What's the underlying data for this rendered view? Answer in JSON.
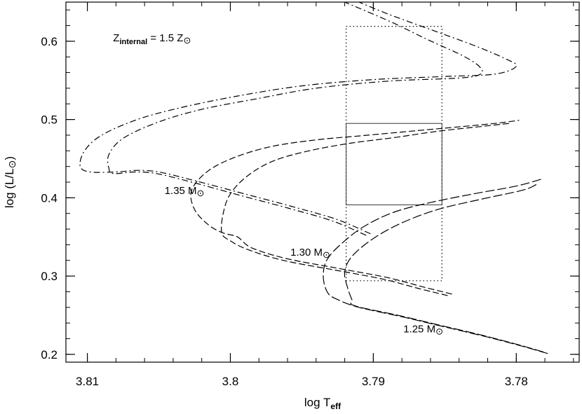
{
  "chart_data": {
    "type": "line",
    "title": "",
    "xlabel": {
      "text": "log  T",
      "subscript": "eff"
    },
    "ylabel": {
      "prefix": "log  (L/L",
      "symbol": "⊙",
      "suffix": ")"
    },
    "xlim": [
      3.8115,
      3.7756
    ],
    "ylim": [
      0.19,
      0.65
    ],
    "x_ticks": [
      3.81,
      3.8,
      3.79,
      3.78
    ],
    "x_tick_labels": [
      "3.81",
      "3.8",
      "3.79",
      "3.78"
    ],
    "y_ticks": [
      0.2,
      0.3,
      0.4,
      0.5,
      0.6
    ],
    "y_tick_labels": [
      "0.2",
      "0.3",
      "0.4",
      "0.5",
      "0.6"
    ],
    "x_minor_step": 0.002,
    "y_minor_step": 0.02,
    "annotations": [
      {
        "key": "zinternal",
        "main": "Z",
        "sub": "internal",
        "rest": "  =  1.5  Z",
        "symbol": "⊙",
        "x": 3.8082,
        "y": 0.6
      },
      {
        "key": "m135",
        "main": "1.35  M",
        "symbol": "⊙",
        "x": 3.8046,
        "y": 0.405
      },
      {
        "key": "m130",
        "main": "1.30  M",
        "symbol": "⊙",
        "x": 3.7958,
        "y": 0.326
      },
      {
        "key": "m125",
        "main": "1.25  M",
        "symbol": "⊙",
        "x": 3.7879,
        "y": 0.228
      }
    ],
    "boxes": [
      {
        "name": "dotted-box",
        "x": [
          3.7919,
          3.7852
        ],
        "y": [
          0.294,
          0.619
        ],
        "style": "dotted"
      },
      {
        "name": "solid-box",
        "x": [
          3.7919,
          3.7852
        ],
        "y": [
          0.391,
          0.495
        ],
        "style": "solid"
      }
    ],
    "series": [
      {
        "mass": "1.35",
        "style": "dashdot",
        "points": [
          [
            3.7902,
            0.354
          ],
          [
            3.7925,
            0.372
          ],
          [
            3.7955,
            0.388
          ],
          [
            3.799,
            0.405
          ],
          [
            3.8025,
            0.422
          ],
          [
            3.805,
            0.433
          ],
          [
            3.8065,
            0.435
          ],
          [
            3.808,
            0.433
          ],
          [
            3.8098,
            0.433
          ],
          [
            3.8105,
            0.44
          ],
          [
            3.8102,
            0.46
          ],
          [
            3.809,
            0.48
          ],
          [
            3.8065,
            0.5
          ],
          [
            3.8035,
            0.515
          ],
          [
            3.7995,
            0.53
          ],
          [
            3.795,
            0.543
          ],
          [
            3.79,
            0.551
          ],
          [
            3.785,
            0.555
          ],
          [
            3.7815,
            0.558
          ],
          [
            3.78,
            0.568
          ],
          [
            3.7808,
            0.578
          ],
          [
            3.783,
            0.595
          ],
          [
            3.786,
            0.615
          ],
          [
            3.789,
            0.635
          ],
          [
            3.791,
            0.65
          ]
        ]
      },
      {
        "mass": "1.35",
        "style": "dashdot",
        "points": [
          [
            3.7905,
            0.352
          ],
          [
            3.7928,
            0.37
          ],
          [
            3.7958,
            0.386
          ],
          [
            3.7993,
            0.403
          ],
          [
            3.8027,
            0.42
          ],
          [
            3.8052,
            0.431
          ],
          [
            3.8067,
            0.433
          ],
          [
            3.8082,
            0.431
          ],
          [
            3.8085,
            0.438
          ],
          [
            3.8085,
            0.455
          ],
          [
            3.8075,
            0.476
          ],
          [
            3.805,
            0.497
          ],
          [
            3.802,
            0.513
          ],
          [
            3.798,
            0.527
          ],
          [
            3.794,
            0.54
          ],
          [
            3.789,
            0.549
          ],
          [
            3.784,
            0.553
          ],
          [
            3.7825,
            0.558
          ],
          [
            3.7826,
            0.568
          ],
          [
            3.7838,
            0.582
          ],
          [
            3.7862,
            0.602
          ],
          [
            3.7888,
            0.625
          ],
          [
            3.792,
            0.65
          ]
        ]
      },
      {
        "mass": "1.30",
        "style": "dashed",
        "points": [
          [
            3.7845,
            0.277
          ],
          [
            3.7865,
            0.286
          ],
          [
            3.789,
            0.298
          ],
          [
            3.7925,
            0.31
          ],
          [
            3.796,
            0.322
          ],
          [
            3.7985,
            0.336
          ],
          [
            3.7995,
            0.35
          ],
          [
            3.8005,
            0.355
          ],
          [
            3.8015,
            0.365
          ],
          [
            3.8025,
            0.385
          ],
          [
            3.8027,
            0.41
          ],
          [
            3.8015,
            0.435
          ],
          [
            3.7995,
            0.453
          ],
          [
            3.797,
            0.466
          ],
          [
            3.794,
            0.474
          ],
          [
            3.791,
            0.479
          ],
          [
            3.788,
            0.484
          ],
          [
            3.785,
            0.489
          ],
          [
            3.7815,
            0.495
          ],
          [
            3.7798,
            0.499
          ]
        ]
      },
      {
        "mass": "1.30",
        "style": "dashed",
        "points": [
          [
            3.7848,
            0.275
          ],
          [
            3.7868,
            0.284
          ],
          [
            3.7893,
            0.296
          ],
          [
            3.7928,
            0.308
          ],
          [
            3.7963,
            0.32
          ],
          [
            3.7988,
            0.334
          ],
          [
            3.8,
            0.345
          ],
          [
            3.8006,
            0.355
          ],
          [
            3.8005,
            0.38
          ],
          [
            3.8,
            0.405
          ],
          [
            3.7988,
            0.428
          ],
          [
            3.797,
            0.447
          ],
          [
            3.7945,
            0.46
          ],
          [
            3.7915,
            0.47
          ],
          [
            3.7885,
            0.477
          ],
          [
            3.7855,
            0.485
          ],
          [
            3.7825,
            0.491
          ],
          [
            3.7805,
            0.495
          ]
        ]
      },
      {
        "mass": "1.25",
        "style": "long-dash",
        "points": [
          [
            3.7778,
            0.201
          ],
          [
            3.7795,
            0.21
          ],
          [
            3.782,
            0.222
          ],
          [
            3.785,
            0.235
          ],
          [
            3.788,
            0.248
          ],
          [
            3.791,
            0.26
          ],
          [
            3.7925,
            0.27
          ],
          [
            3.7932,
            0.279
          ],
          [
            3.7935,
            0.3
          ],
          [
            3.7932,
            0.322
          ],
          [
            3.792,
            0.345
          ],
          [
            3.7905,
            0.365
          ],
          [
            3.7885,
            0.382
          ],
          [
            3.786,
            0.394
          ],
          [
            3.783,
            0.405
          ],
          [
            3.78,
            0.415
          ],
          [
            3.7782,
            0.424
          ]
        ]
      },
      {
        "mass": "1.25",
        "style": "long-dash",
        "points": [
          [
            3.7781,
            0.203
          ],
          [
            3.7798,
            0.212
          ],
          [
            3.7823,
            0.224
          ],
          [
            3.7853,
            0.237
          ],
          [
            3.7883,
            0.25
          ],
          [
            3.7913,
            0.262
          ],
          [
            3.7915,
            0.27
          ],
          [
            3.7918,
            0.285
          ],
          [
            3.792,
            0.305
          ],
          [
            3.7915,
            0.325
          ],
          [
            3.79,
            0.348
          ],
          [
            3.788,
            0.368
          ],
          [
            3.7855,
            0.385
          ],
          [
            3.7825,
            0.398
          ],
          [
            3.7795,
            0.41
          ],
          [
            3.7785,
            0.418
          ]
        ]
      }
    ]
  }
}
